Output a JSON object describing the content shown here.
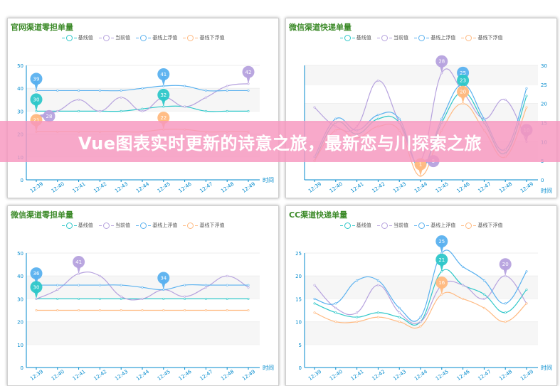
{
  "banner": {
    "text": "Vue图表实时更新的诗意之旅，最新恋与川探索之旅"
  },
  "legend": [
    "基线值",
    "当前值",
    "基线上浮值",
    "基线下浮值"
  ],
  "colors": {
    "baseline": "#2ec7c9",
    "current": "#b6a2de",
    "upper": "#5ab1ef",
    "lower": "#ffb980",
    "title": "#3d8b2a",
    "axis": "#008acd",
    "banner": "#f796be"
  },
  "chart_data": [
    {
      "type": "line",
      "title": "官网渠道零担单量",
      "xlabel": "时间",
      "ylim": [
        0,
        50
      ],
      "yticks": [
        0,
        10,
        20,
        30,
        40,
        50
      ],
      "categories": [
        "12:39",
        "12:40",
        "12:41",
        "12:42",
        "12:43",
        "12:44",
        "12:45",
        "12:46",
        "12:47",
        "12:48",
        "12:49"
      ],
      "series": [
        {
          "name": "基线值",
          "values": [
            30,
            30,
            30,
            30,
            30,
            31,
            32,
            32,
            30,
            30,
            30
          ]
        },
        {
          "name": "当前值",
          "values": [
            28,
            30,
            35,
            30,
            36,
            30,
            36,
            32,
            36,
            41,
            42
          ]
        },
        {
          "name": "基线上浮值",
          "values": [
            39,
            39,
            39,
            39,
            39,
            40,
            41,
            41,
            39,
            39,
            39
          ]
        },
        {
          "name": "基线下浮值",
          "values": [
            21,
            21,
            21,
            21,
            21,
            21,
            22,
            22,
            21,
            21,
            21
          ]
        }
      ],
      "markers": [
        {
          "series": 2,
          "index": 0,
          "value": 39
        },
        {
          "series": 2,
          "index": 6,
          "value": 41
        },
        {
          "series": 0,
          "index": 0,
          "value": 30
        },
        {
          "series": 0,
          "index": 6,
          "value": 32
        },
        {
          "series": 1,
          "index": 0,
          "value": 28
        },
        {
          "series": 1,
          "index": 10,
          "value": 42
        },
        {
          "series": 3,
          "index": 0,
          "value": 21
        },
        {
          "series": 3,
          "index": 6,
          "value": 22
        }
      ]
    },
    {
      "type": "line",
      "title": "微信渠道快递单量",
      "xlabel": "时间",
      "ylim": [
        0,
        30
      ],
      "yticks": [
        0,
        5,
        10,
        15,
        20,
        25,
        30
      ],
      "categories": [
        "12:39",
        "12:40",
        "12:41",
        "12:42",
        "12:43",
        "12:44",
        "12:45",
        "12:46",
        "12:47",
        "12:48",
        "12:49"
      ],
      "series": [
        {
          "name": "基线值",
          "values": [
            5,
            15,
            12,
            16,
            15,
            3,
            15,
            23,
            15,
            7,
            22
          ]
        },
        {
          "name": "当前值",
          "values": [
            19,
            14,
            14,
            26,
            15,
            5,
            28,
            23,
            16,
            21,
            10
          ]
        },
        {
          "name": "基线上浮值",
          "values": [
            6,
            16,
            13,
            17,
            16,
            3,
            16,
            25,
            16,
            8,
            24
          ]
        },
        {
          "name": "基线下浮值",
          "values": [
            5,
            13,
            11,
            14,
            13,
            1,
            13,
            20,
            13,
            6,
            19
          ]
        }
      ],
      "markers": [
        {
          "series": 1,
          "index": 6,
          "value": 28
        },
        {
          "series": 2,
          "index": 7,
          "value": 25
        },
        {
          "series": 0,
          "index": 7,
          "value": 23
        },
        {
          "series": 3,
          "index": 7,
          "value": 20
        },
        {
          "series": 1,
          "index": 5,
          "value": 5
        },
        {
          "series": 3,
          "index": 5,
          "value": 1
        },
        {
          "series": 1,
          "index": 10,
          "value": 10
        }
      ]
    },
    {
      "type": "line",
      "title": "微信渠道零担单量",
      "xlabel": "时间",
      "ylim": [
        0,
        50
      ],
      "yticks": [
        0,
        10,
        20,
        30,
        40,
        50
      ],
      "categories": [
        "12:39",
        "12:40",
        "12:41",
        "12:42",
        "12:43",
        "12:44",
        "12:45",
        "12:46",
        "12:47",
        "12:48",
        "12:49"
      ],
      "series": [
        {
          "name": "基线值",
          "values": [
            30,
            30,
            30,
            30,
            30,
            30,
            30,
            30,
            30,
            30,
            30
          ]
        },
        {
          "name": "当前值",
          "values": [
            30,
            34,
            41,
            40,
            31,
            30,
            34,
            31,
            35,
            40,
            35
          ]
        },
        {
          "name": "基线上浮值",
          "values": [
            36,
            36,
            36,
            36,
            36,
            35,
            34,
            36,
            36,
            36,
            36
          ]
        },
        {
          "name": "基线下浮值",
          "values": [
            25,
            25,
            25,
            25,
            25,
            25,
            25,
            25,
            25,
            25,
            25
          ]
        }
      ],
      "markers": [
        {
          "series": 2,
          "index": 0,
          "value": 36
        },
        {
          "series": 2,
          "index": 6,
          "value": 34
        },
        {
          "series": 0,
          "index": 0,
          "value": 30
        },
        {
          "series": 1,
          "index": 2,
          "value": 41
        }
      ]
    },
    {
      "type": "line",
      "title": "CC渠道快递单量",
      "xlabel": "时间",
      "ylim": [
        0,
        25
      ],
      "yticks": [
        0,
        5,
        10,
        15,
        20,
        25
      ],
      "categories": [
        "12:39",
        "12:40",
        "12:41",
        "12:42",
        "12:43",
        "12:44",
        "12:45",
        "12:46",
        "12:47",
        "12:48",
        "12:49"
      ],
      "series": [
        {
          "name": "基线值",
          "values": [
            14,
            12,
            11,
            12,
            11,
            10,
            21,
            18,
            16,
            12,
            17
          ]
        },
        {
          "name": "当前值",
          "values": [
            18,
            13,
            12,
            18,
            12,
            10,
            18,
            18,
            15,
            20,
            14
          ]
        },
        {
          "name": "基线上浮值",
          "values": [
            15,
            14,
            19,
            19,
            13,
            11,
            25,
            22,
            19,
            14,
            21
          ]
        },
        {
          "name": "基线下浮值",
          "values": [
            12,
            10,
            10,
            11,
            10,
            9,
            16,
            15,
            13,
            10,
            14
          ]
        }
      ],
      "markers": [
        {
          "series": 2,
          "index": 6,
          "value": 25
        },
        {
          "series": 0,
          "index": 6,
          "value": 21
        },
        {
          "series": 3,
          "index": 6,
          "value": 16
        },
        {
          "series": 1,
          "index": 9,
          "value": 20
        }
      ]
    }
  ]
}
